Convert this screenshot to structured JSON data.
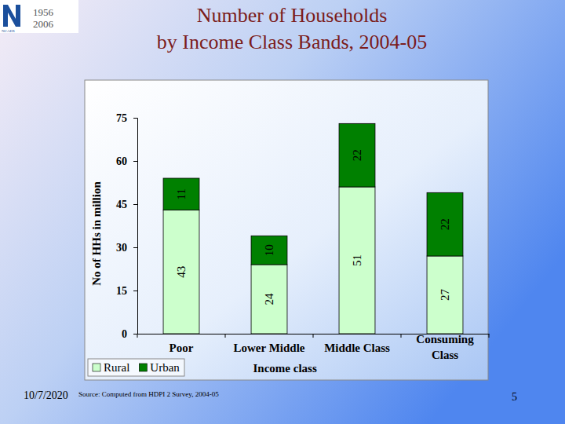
{
  "chart_data": {
    "type": "bar",
    "stacked": true,
    "title": "Number of Households\nby Income Class Bands, 2004-05",
    "x_label": "Income class",
    "y_label": "No of HHs in million",
    "categories": [
      "Poor",
      "Lower Middle",
      "Middle Class",
      "Consuming Class"
    ],
    "series": [
      {
        "name": "Rural",
        "color": "#ccffcc",
        "values": [
          43,
          24,
          51,
          27
        ]
      },
      {
        "name": "Urban",
        "color": "#008000",
        "values": [
          11,
          10,
          22,
          22
        ]
      }
    ],
    "ylim": [
      0,
      75
    ],
    "yticks": [
      0,
      15,
      30,
      45,
      60,
      75
    ],
    "grid": false,
    "data_labels": true,
    "legend": "bottom-left"
  },
  "logo": {
    "years": [
      "1956",
      "2006"
    ],
    "name": "NCAER"
  },
  "footer": {
    "date": "10/7/2020",
    "source": "Source: Computed from HDPI 2 Survey, 2004-05",
    "page": "5"
  }
}
